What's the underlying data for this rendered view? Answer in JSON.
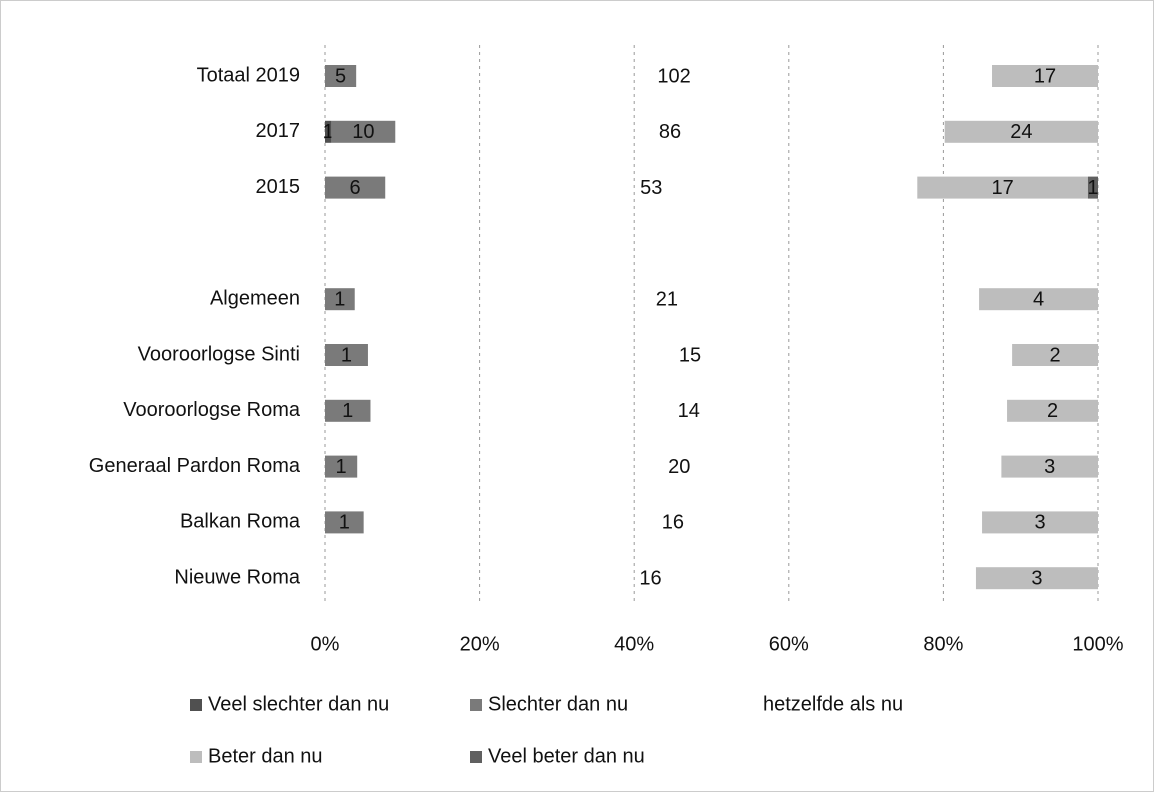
{
  "chart_data": {
    "type": "bar",
    "orientation": "horizontal",
    "stacking": "percent",
    "categories": [
      "Totaal 2019",
      "2017",
      "2015",
      null,
      "Algemeen",
      "Vooroorlogse Sinti",
      "Vooroorlogse Roma",
      "Generaal Pardon Roma",
      "Balkan Roma",
      "Nieuwe Roma"
    ],
    "series": [
      {
        "name": "Veel slechter dan nu",
        "color": "#505050",
        "values": [
          null,
          1,
          null,
          null,
          null,
          null,
          null,
          null,
          null,
          null
        ]
      },
      {
        "name": "Slechter dan nu",
        "color": "#7a7a7a",
        "values": [
          5,
          10,
          6,
          null,
          1,
          1,
          1,
          1,
          1,
          null
        ]
      },
      {
        "name": "hetzelfde als nu",
        "color": "none",
        "values": [
          102,
          86,
          53,
          null,
          21,
          15,
          14,
          20,
          16,
          16
        ]
      },
      {
        "name": "Beter dan nu",
        "color": "#bdbdbd",
        "values": [
          17,
          24,
          17,
          null,
          4,
          2,
          2,
          3,
          3,
          3
        ]
      },
      {
        "name": "Veel beter dan nu",
        "color": "#606060",
        "values": [
          null,
          null,
          1,
          null,
          null,
          null,
          null,
          null,
          null,
          null
        ]
      }
    ],
    "xlim": [
      0,
      100
    ],
    "xticks": [
      {
        "value": 0,
        "label": "0%"
      },
      {
        "value": 20,
        "label": "20%"
      },
      {
        "value": 40,
        "label": "40%"
      },
      {
        "value": 60,
        "label": "60%"
      },
      {
        "value": 80,
        "label": "80%"
      },
      {
        "value": 100,
        "label": "100%"
      }
    ],
    "grid": true,
    "legend": "bottom"
  }
}
